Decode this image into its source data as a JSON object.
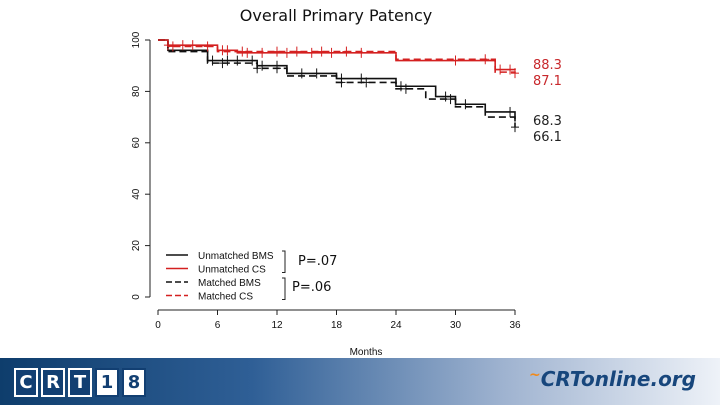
{
  "slide": {
    "title": "Overall Primary Patency"
  },
  "chart_data": {
    "type": "line",
    "subtype": "kaplan-meier-step",
    "title": "Overall Primary Patency",
    "xlabel": "Months",
    "ylabel": "",
    "xlim": [
      0,
      36
    ],
    "ylim": [
      0,
      100
    ],
    "x_ticks": [
      0,
      6,
      12,
      18,
      24,
      30,
      36
    ],
    "y_ticks": [
      0,
      20,
      40,
      60,
      80,
      100
    ],
    "legend_position": "bottom-left",
    "series": [
      {
        "name": "Unmatched BMS",
        "color": "#111111",
        "dash": "solid",
        "x": [
          0,
          1,
          5,
          10,
          13,
          18,
          24,
          28,
          30,
          33,
          36
        ],
        "y": [
          100,
          96,
          92,
          90,
          87,
          85,
          82,
          78,
          75,
          72,
          68.3
        ],
        "censor_x": [
          5.5,
          7,
          8,
          9.5,
          10.5,
          12,
          14.5,
          16,
          18.5,
          20.5,
          24.5,
          29,
          31,
          35.5
        ]
      },
      {
        "name": "Unmatched CS",
        "color": "#d42020",
        "dash": "solid",
        "x": [
          0,
          1,
          6,
          8,
          24,
          34,
          36
        ],
        "y": [
          100,
          98,
          96,
          95,
          92,
          88.5,
          88.3
        ],
        "censor_x": [
          1,
          2.5,
          3.5,
          6.5,
          7,
          9,
          10.5,
          13,
          15.5,
          17.5,
          20.5,
          30,
          34.5,
          35.5
        ]
      },
      {
        "name": "Matched BMS",
        "color": "#111111",
        "dash": "dashed",
        "x": [
          0,
          1,
          5,
          10,
          13,
          18,
          24,
          27,
          30,
          33,
          36
        ],
        "y": [
          100,
          95.5,
          91,
          89,
          86,
          83.5,
          81,
          77,
          74,
          70,
          66.1
        ],
        "censor_x": [
          6.5,
          10,
          12,
          18.5,
          21,
          25,
          29.5,
          36
        ]
      },
      {
        "name": "Matched CS",
        "color": "#d42020",
        "dash": "dashed",
        "x": [
          0,
          1,
          6,
          8,
          24,
          34,
          36
        ],
        "y": [
          100,
          97.5,
          95.5,
          95.5,
          92.5,
          87.5,
          87.1
        ],
        "censor_x": [
          1.5,
          5,
          8.5,
          12,
          14,
          16.5,
          19,
          33,
          36
        ]
      }
    ],
    "end_labels": [
      {
        "text": "88.3",
        "color": "#c8282c"
      },
      {
        "text": "87.1",
        "color": "#c8282c"
      },
      {
        "text": "68.3",
        "color": "#222222"
      },
      {
        "text": "66.1",
        "color": "#222222"
      }
    ],
    "p_values": [
      {
        "text": "P=.07",
        "groups": [
          "Unmatched BMS",
          "Unmatched CS"
        ]
      },
      {
        "text": "P=.06",
        "groups": [
          "Matched BMS",
          "Matched CS"
        ]
      }
    ]
  },
  "footer": {
    "left_logo_letters": [
      "C",
      "R",
      "T"
    ],
    "left_logo_year": [
      "1",
      "8"
    ],
    "right_logo_main": "CRTonline.org",
    "right_logo_swoosh": "~"
  }
}
